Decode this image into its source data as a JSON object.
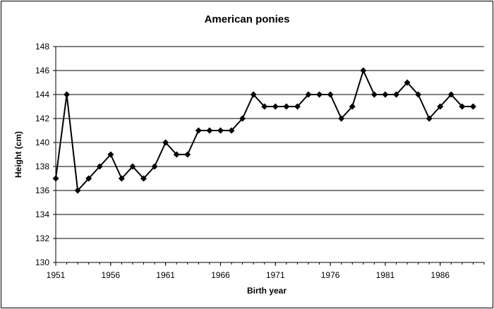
{
  "chart_data": {
    "type": "line",
    "title": "American ponies",
    "xlabel": "Birth year",
    "ylabel": "Height (cm)",
    "xlim": [
      1951,
      1990
    ],
    "ylim": [
      130,
      148
    ],
    "x_ticks": [
      "1951",
      "1956",
      "1961",
      "1966",
      "1971",
      "1976",
      "1981",
      "1986"
    ],
    "y_ticks": [
      "130",
      "132",
      "134",
      "136",
      "138",
      "140",
      "142",
      "144",
      "146",
      "148"
    ],
    "grid": "horizontal",
    "legend": "none",
    "colors": {
      "line": "#000000",
      "gridline": "#000000"
    },
    "series": [
      {
        "marker": "diamond",
        "x": [
          1951,
          1952,
          1953,
          1954,
          1955,
          1956,
          1957,
          1958,
          1959,
          1960,
          1961,
          1962,
          1963,
          1964,
          1965,
          1966,
          1967,
          1968,
          1969,
          1970,
          1971,
          1972,
          1973,
          1974,
          1975,
          1976,
          1977,
          1978,
          1979,
          1980,
          1981,
          1982,
          1983,
          1984,
          1985,
          1986,
          1987,
          1988,
          1989
        ],
        "y": [
          137,
          144,
          136,
          137,
          138,
          139,
          137,
          138,
          137,
          138,
          140,
          139,
          139,
          141,
          141,
          141,
          141,
          142,
          144,
          143,
          143,
          143,
          143,
          144,
          144,
          144,
          142,
          143,
          146,
          144,
          144,
          144,
          145,
          144,
          142,
          143,
          144,
          143,
          143
        ]
      }
    ]
  }
}
